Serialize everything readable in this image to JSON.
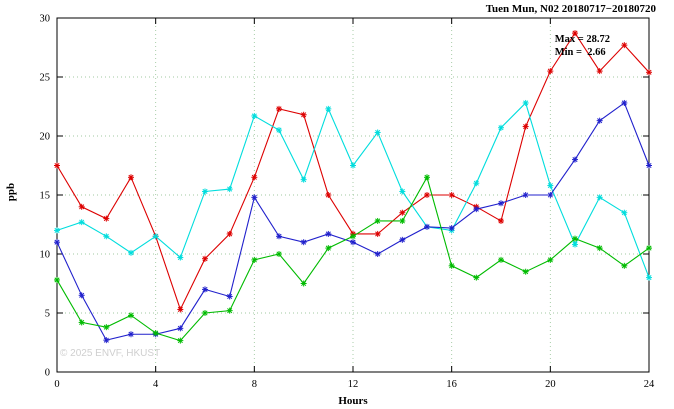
{
  "watermark": "© 2025 ENVF, HKUST",
  "annotations": {
    "max_label": "Max = 28.72",
    "min_label": "Min =  2.66"
  },
  "chart_data": {
    "type": "line",
    "title": "Tuen Mun, N02 20180717−20180720",
    "xlabel": "Hours",
    "ylabel": "ppb",
    "xlim": [
      0,
      24
    ],
    "ylim": [
      0,
      30
    ],
    "xticks": [
      0,
      4,
      8,
      12,
      16,
      20,
      24
    ],
    "yticks": [
      0,
      5,
      10,
      15,
      20,
      25,
      30
    ],
    "grid": true,
    "legend": "none",
    "marker": "asterisk",
    "x": [
      0,
      1,
      2,
      3,
      4,
      5,
      6,
      7,
      8,
      9,
      10,
      11,
      12,
      13,
      14,
      15,
      16,
      17,
      18,
      19,
      20,
      21,
      22,
      23,
      24
    ],
    "series": [
      {
        "name": "red",
        "color": "#dd0000",
        "values": [
          17.5,
          14.0,
          13.0,
          16.5,
          11.5,
          5.3,
          9.6,
          11.7,
          16.5,
          22.3,
          21.8,
          15.0,
          11.7,
          11.7,
          13.5,
          15.0,
          15.0,
          14.0,
          12.8,
          20.8,
          25.5,
          28.72,
          25.5,
          27.7,
          25.4
        ]
      },
      {
        "name": "cyan",
        "color": "#00dddd",
        "values": [
          12.0,
          12.7,
          11.5,
          10.1,
          11.5,
          9.7,
          15.3,
          15.5,
          21.7,
          20.5,
          16.3,
          22.3,
          17.5,
          20.3,
          15.3,
          12.3,
          12.0,
          16.0,
          20.7,
          22.8,
          15.8,
          10.8,
          14.8,
          13.5,
          8.0
        ]
      },
      {
        "name": "blue",
        "color": "#2020cc",
        "values": [
          11.0,
          6.5,
          2.7,
          3.2,
          3.2,
          3.7,
          7.0,
          6.4,
          14.8,
          11.5,
          11.0,
          11.7,
          11.0,
          10.0,
          11.2,
          12.3,
          12.2,
          13.8,
          14.3,
          15.0,
          15.0,
          18.0,
          21.3,
          22.8,
          17.5
        ]
      },
      {
        "name": "green",
        "color": "#00bb00",
        "values": [
          7.8,
          4.2,
          3.8,
          4.8,
          3.3,
          2.66,
          5.0,
          5.2,
          9.5,
          10.0,
          7.5,
          10.5,
          11.5,
          12.8,
          12.8,
          16.5,
          9.0,
          8.0,
          9.5,
          8.5,
          9.5,
          11.3,
          10.5,
          9.0,
          10.5
        ]
      }
    ],
    "annotations": [
      "Max = 28.72",
      "Min =  2.66"
    ],
    "grid_color": "#a0c8a0",
    "axis_color": "#000000"
  }
}
